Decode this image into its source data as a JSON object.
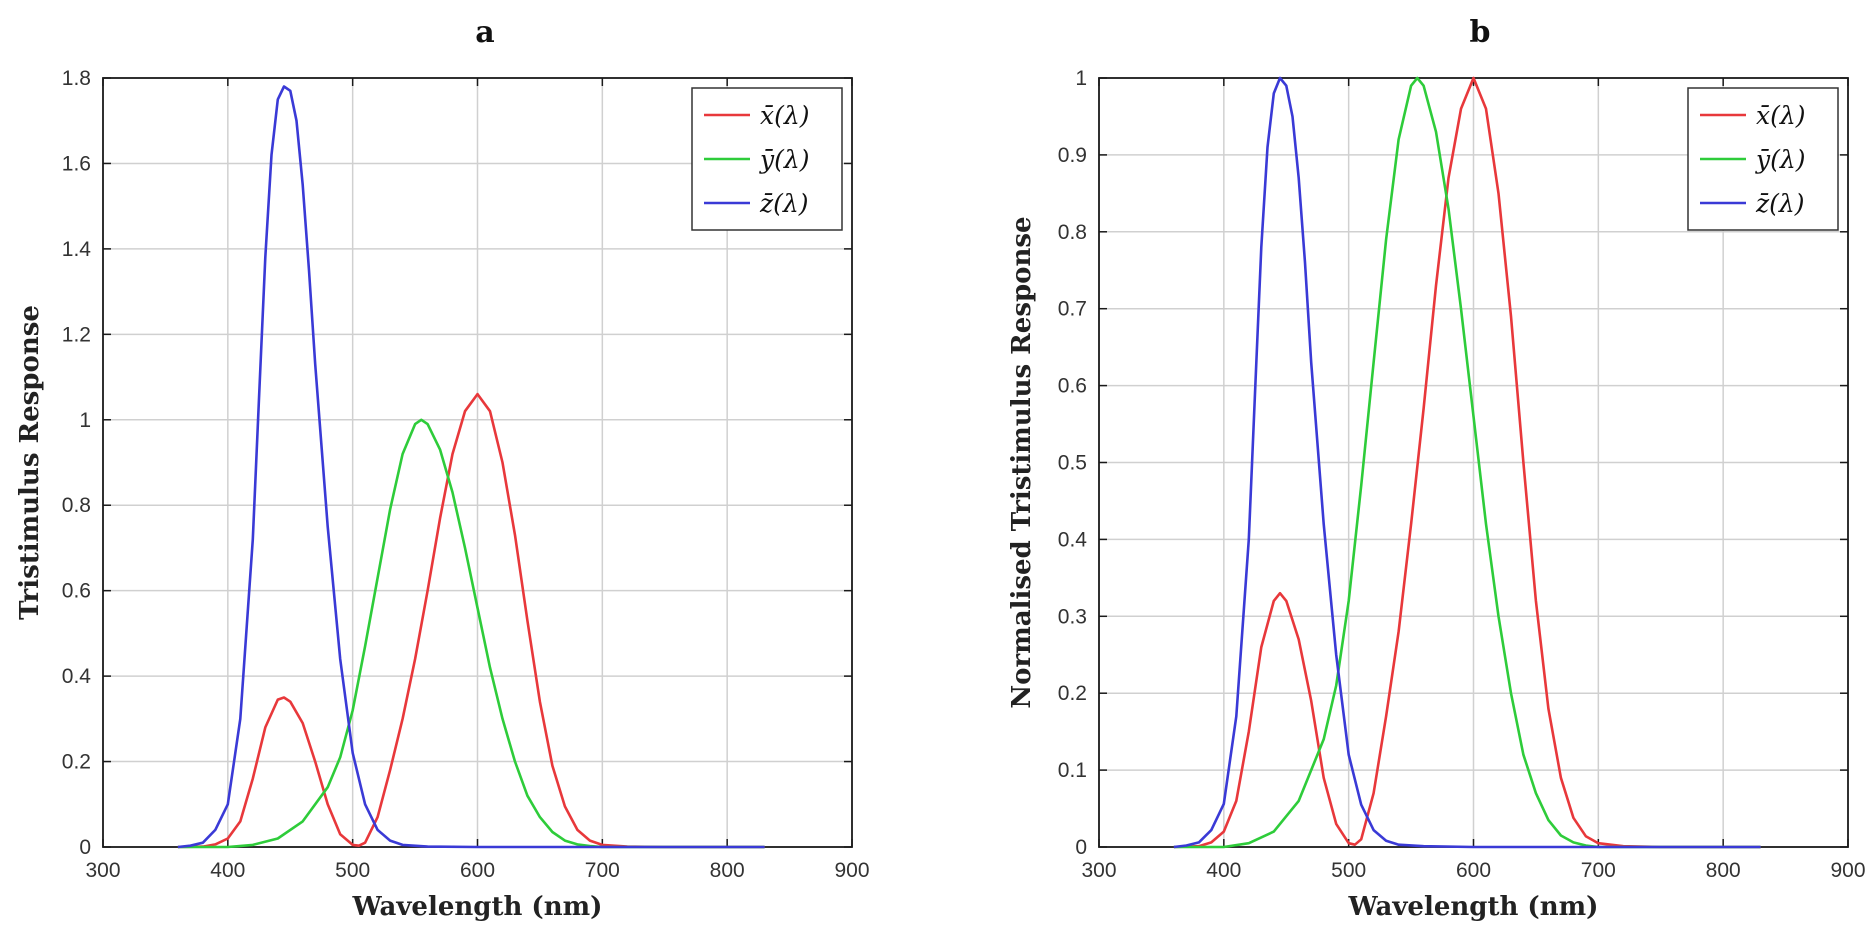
{
  "chart_data": [
    {
      "type": "line",
      "panel_label": "a",
      "xlabel": "Wavelength (nm)",
      "ylabel": "Tristimulus Response",
      "xlim": [
        300,
        900
      ],
      "ylim": [
        0,
        1.8
      ],
      "xticks": [
        300,
        400,
        500,
        600,
        700,
        800,
        900
      ],
      "yticks": [
        0,
        0.2,
        0.4,
        0.6,
        0.8,
        1,
        1.2,
        1.4,
        1.6,
        1.8
      ],
      "ytick_labels": [
        "0",
        "0.2",
        "0.4",
        "0.6",
        "0.8",
        "1",
        "1.2",
        "1.4",
        "1.6",
        "1.8"
      ],
      "grid": true,
      "legend_position": "top-right",
      "series": [
        {
          "name": "x̄(λ)",
          "color": "#e8383b",
          "x": [
            360,
            380,
            390,
            400,
            410,
            420,
            430,
            440,
            445,
            450,
            460,
            470,
            480,
            490,
            500,
            505,
            510,
            520,
            530,
            540,
            550,
            560,
            570,
            580,
            590,
            600,
            610,
            620,
            630,
            640,
            650,
            660,
            670,
            680,
            690,
            700,
            720,
            750,
            800,
            830
          ],
          "values": [
            0.0,
            0.001,
            0.006,
            0.02,
            0.06,
            0.16,
            0.28,
            0.345,
            0.35,
            0.34,
            0.29,
            0.2,
            0.1,
            0.03,
            0.005,
            0.003,
            0.01,
            0.07,
            0.18,
            0.3,
            0.44,
            0.6,
            0.77,
            0.92,
            1.02,
            1.06,
            1.02,
            0.9,
            0.73,
            0.53,
            0.34,
            0.19,
            0.095,
            0.04,
            0.015,
            0.005,
            0.001,
            0.0,
            0.0,
            0.0
          ]
        },
        {
          "name": "ȳ(λ)",
          "color": "#2ecc3a",
          "x": [
            360,
            400,
            420,
            440,
            460,
            480,
            490,
            500,
            510,
            520,
            530,
            540,
            550,
            555,
            560,
            570,
            580,
            590,
            600,
            610,
            620,
            630,
            640,
            650,
            660,
            670,
            680,
            690,
            700,
            720,
            750,
            800,
            830
          ],
          "values": [
            0.0,
            0.0,
            0.005,
            0.02,
            0.06,
            0.14,
            0.21,
            0.32,
            0.47,
            0.63,
            0.79,
            0.92,
            0.99,
            1.0,
            0.99,
            0.93,
            0.83,
            0.7,
            0.56,
            0.42,
            0.3,
            0.2,
            0.12,
            0.07,
            0.035,
            0.015,
            0.006,
            0.002,
            0.0,
            0.0,
            0.0,
            0.0,
            0.0
          ]
        },
        {
          "name": "z̄(λ)",
          "color": "#3a3ad6",
          "x": [
            360,
            370,
            380,
            390,
            400,
            410,
            420,
            425,
            430,
            435,
            440,
            445,
            450,
            455,
            460,
            465,
            470,
            480,
            490,
            500,
            510,
            520,
            530,
            540,
            560,
            600,
            700,
            830
          ],
          "values": [
            0.0,
            0.003,
            0.01,
            0.04,
            0.1,
            0.3,
            0.72,
            1.05,
            1.38,
            1.62,
            1.75,
            1.78,
            1.77,
            1.7,
            1.55,
            1.35,
            1.13,
            0.75,
            0.44,
            0.22,
            0.1,
            0.04,
            0.015,
            0.005,
            0.001,
            0.0,
            0.0,
            0.0
          ]
        }
      ]
    },
    {
      "type": "line",
      "panel_label": "b",
      "xlabel": "Wavelength (nm)",
      "ylabel": "Normalised Tristimulus Response",
      "xlim": [
        300,
        900
      ],
      "ylim": [
        0,
        1
      ],
      "xticks": [
        300,
        400,
        500,
        600,
        700,
        800,
        900
      ],
      "yticks": [
        0,
        0.1,
        0.2,
        0.3,
        0.4,
        0.5,
        0.6,
        0.7,
        0.8,
        0.9,
        1
      ],
      "ytick_labels": [
        "0",
        "0.1",
        "0.2",
        "0.3",
        "0.4",
        "0.5",
        "0.6",
        "0.7",
        "0.8",
        "0.9",
        "1"
      ],
      "grid": true,
      "legend_position": "top-right",
      "series": [
        {
          "name": "x̄(λ)",
          "color": "#e8383b",
          "x": [
            360,
            380,
            390,
            400,
            410,
            420,
            430,
            440,
            445,
            450,
            460,
            470,
            480,
            490,
            500,
            505,
            510,
            520,
            530,
            540,
            550,
            560,
            570,
            580,
            590,
            600,
            610,
            620,
            630,
            640,
            650,
            660,
            670,
            680,
            690,
            700,
            720,
            750,
            800,
            830
          ],
          "values": [
            0.0,
            0.001,
            0.006,
            0.02,
            0.06,
            0.15,
            0.26,
            0.32,
            0.33,
            0.32,
            0.27,
            0.19,
            0.09,
            0.03,
            0.005,
            0.003,
            0.01,
            0.07,
            0.17,
            0.28,
            0.42,
            0.57,
            0.73,
            0.87,
            0.96,
            1.0,
            0.96,
            0.85,
            0.69,
            0.5,
            0.32,
            0.18,
            0.09,
            0.038,
            0.014,
            0.005,
            0.001,
            0.0,
            0.0,
            0.0
          ]
        },
        {
          "name": "ȳ(λ)",
          "color": "#2ecc3a",
          "x": [
            360,
            400,
            420,
            440,
            460,
            480,
            490,
            500,
            510,
            520,
            530,
            540,
            550,
            555,
            560,
            570,
            580,
            590,
            600,
            610,
            620,
            630,
            640,
            650,
            660,
            670,
            680,
            690,
            700,
            720,
            750,
            800,
            830
          ],
          "values": [
            0.0,
            0.0,
            0.005,
            0.02,
            0.06,
            0.14,
            0.21,
            0.32,
            0.47,
            0.63,
            0.79,
            0.92,
            0.99,
            1.0,
            0.99,
            0.93,
            0.83,
            0.7,
            0.56,
            0.42,
            0.3,
            0.2,
            0.12,
            0.07,
            0.035,
            0.015,
            0.006,
            0.002,
            0.0,
            0.0,
            0.0,
            0.0,
            0.0
          ]
        },
        {
          "name": "z̄(λ)",
          "color": "#3a3ad6",
          "x": [
            360,
            370,
            380,
            390,
            400,
            410,
            420,
            425,
            430,
            435,
            440,
            445,
            450,
            455,
            460,
            465,
            470,
            480,
            490,
            500,
            510,
            520,
            530,
            540,
            560,
            600,
            700,
            830
          ],
          "values": [
            0.0,
            0.002,
            0.006,
            0.022,
            0.056,
            0.17,
            0.4,
            0.59,
            0.78,
            0.91,
            0.98,
            1.0,
            0.99,
            0.95,
            0.87,
            0.76,
            0.63,
            0.42,
            0.25,
            0.12,
            0.055,
            0.022,
            0.008,
            0.003,
            0.001,
            0.0,
            0.0,
            0.0
          ]
        }
      ]
    }
  ]
}
